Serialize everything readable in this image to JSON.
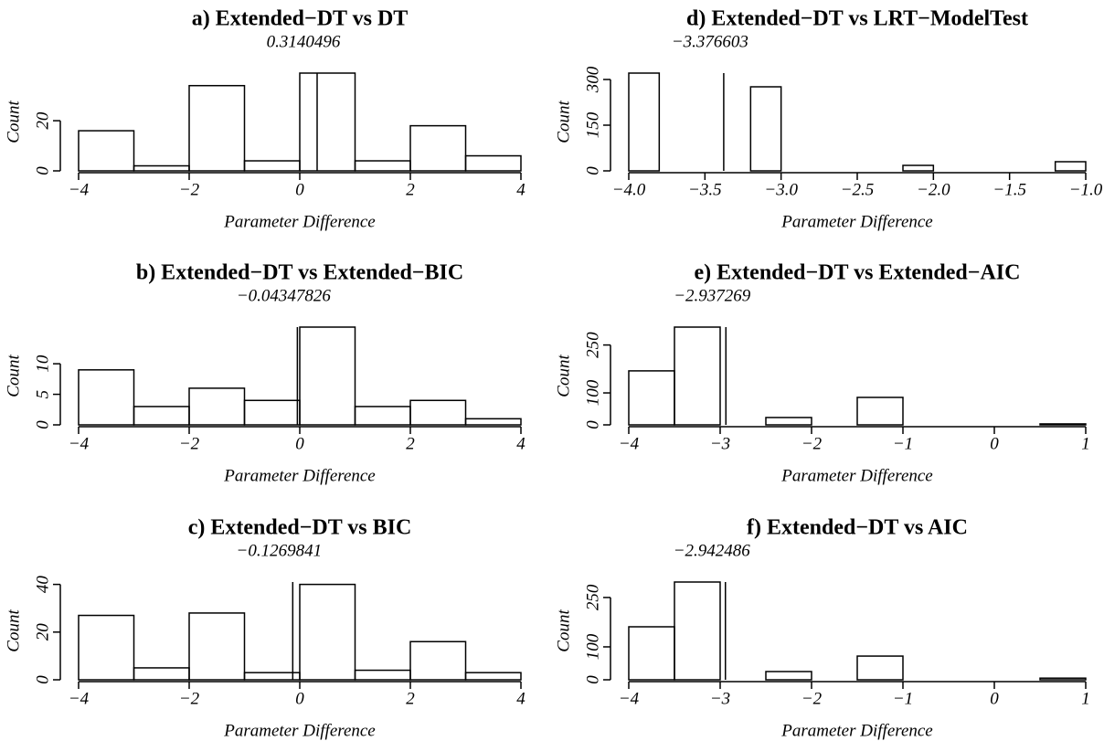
{
  "chart_data": [
    {
      "type": "histogram",
      "title": "a) Extended−DT vs DT",
      "subtitle": 0.3140496,
      "xlabel": "Parameter Difference",
      "ylabel": "Count",
      "bins": [
        {
          "value": -4,
          "label": "−4"
        },
        {
          "value": -3,
          "label": "−3"
        },
        {
          "value": -2,
          "label": "−2"
        },
        {
          "value": -1,
          "label": "−1"
        },
        0,
        1,
        2,
        3,
        4
      ],
      "values": [
        16,
        2,
        34,
        4,
        39,
        4,
        18,
        6
      ],
      "xlim": [
        {
          "value": -4,
          "label": "−4"
        },
        4
      ],
      "xticks": [
        {
          "value": -4,
          "label": "−4"
        },
        {
          "value": -2,
          "label": "−2"
        },
        0,
        2,
        4
      ],
      "ylim": [
        0,
        39
      ],
      "yticks": [
        0,
        20
      ]
    },
    {
      "type": "histogram",
      "title": "b) Extended−DT vs Extended−BIC",
      "subtitle": {
        "value": -0.04347826,
        "label": "−0.04347826"
      },
      "xlabel": "Parameter Difference",
      "ylabel": "Count",
      "bins": [
        {
          "value": -4,
          "label": "−4"
        },
        {
          "value": -3,
          "label": "−3"
        },
        {
          "value": -2,
          "label": "−2"
        },
        {
          "value": -1,
          "label": "−1"
        },
        0,
        1,
        2,
        3,
        4
      ],
      "values": [
        9,
        3,
        6,
        4,
        16,
        3,
        4,
        1
      ],
      "xlim": [
        {
          "value": -4,
          "label": "−4"
        },
        4
      ],
      "xticks": [
        {
          "value": -4,
          "label": "−4"
        },
        {
          "value": -2,
          "label": "−2"
        },
        0,
        2,
        4
      ],
      "ylim": [
        0,
        16
      ],
      "yticks": [
        0,
        5,
        10
      ]
    },
    {
      "type": "histogram",
      "title": "c) Extended−DT vs BIC",
      "subtitle": {
        "value": -0.1269841,
        "label": "−0.1269841"
      },
      "xlabel": "Parameter Difference",
      "ylabel": "Count",
      "bins": [
        {
          "value": -4,
          "label": "−4"
        },
        {
          "value": -3,
          "label": "−3"
        },
        {
          "value": -2,
          "label": "−2"
        },
        {
          "value": -1,
          "label": "−1"
        },
        0,
        1,
        2,
        3,
        4
      ],
      "values": [
        27,
        5,
        28,
        3,
        40,
        4,
        16,
        3
      ],
      "xlim": [
        {
          "value": -4,
          "label": "−4"
        },
        4
      ],
      "xticks": [
        {
          "value": -4,
          "label": "−4"
        },
        {
          "value": -2,
          "label": "−2"
        },
        0,
        2,
        4
      ],
      "ylim": [
        0,
        41
      ],
      "yticks": [
        0,
        20,
        40
      ]
    },
    {
      "type": "histogram",
      "title": "d) Extended−DT vs LRT−ModelTest",
      "subtitle": {
        "value": -3.376603,
        "label": "−3.376603"
      },
      "xlabel": "Parameter Difference",
      "ylabel": "Count",
      "bins": [
        -4.0,
        -3.8,
        -3.6,
        -3.4,
        -3.2,
        -3.0,
        -2.8,
        -2.6,
        -2.4,
        -2.2,
        -2.0,
        -1.8,
        -1.6,
        -1.4,
        -1.2,
        -1.0
      ],
      "values": [
        321,
        0,
        0,
        0,
        276,
        0,
        0,
        0,
        0,
        18,
        0,
        0,
        0,
        0,
        30
      ],
      "xlim": [
        {
          "value": -4,
          "label": "−4.0"
        },
        {
          "value": -1,
          "label": "−1.0"
        }
      ],
      "xticks": [
        {
          "value": -4,
          "label": "−4.0"
        },
        {
          "value": -3.5,
          "label": "−3.5"
        },
        {
          "value": -3,
          "label": "−3.0"
        },
        {
          "value": -2.5,
          "label": "−2.5"
        },
        {
          "value": -2,
          "label": "−2.0"
        },
        {
          "value": -1.5,
          "label": "−1.5"
        },
        {
          "value": -1,
          "label": "−1.0"
        }
      ],
      "ylim": [
        0,
        321
      ],
      "yticks": [
        0,
        150,
        300
      ]
    },
    {
      "type": "histogram",
      "title": "e) Extended−DT vs Extended−AIC",
      "subtitle": {
        "value": -2.937269,
        "label": "−2.937269"
      },
      "xlabel": "Parameter Difference",
      "ylabel": "Count",
      "bins": [
        -4,
        -3.5,
        -3,
        -2.5,
        -2,
        -1.5,
        -1,
        -0.5,
        0,
        0.5,
        1
      ],
      "values": [
        169,
        306,
        0,
        23,
        0,
        86,
        0,
        0,
        0,
        3
      ],
      "xlim": [
        {
          "value": -4,
          "label": "−4"
        },
        1
      ],
      "xticks": [
        {
          "value": -4,
          "label": "−4"
        },
        {
          "value": -3,
          "label": "−3"
        },
        {
          "value": -2,
          "label": "−2"
        },
        {
          "value": -1,
          "label": "−1"
        },
        0,
        1
      ],
      "ylim": [
        0,
        306
      ],
      "yticks": [
        0,
        100,
        250
      ]
    },
    {
      "type": "histogram",
      "title": "f) Extended−DT vs AIC",
      "subtitle": {
        "value": -2.942486,
        "label": "−2.942486"
      },
      "xlabel": "Parameter Difference",
      "ylabel": "Count",
      "bins": [
        -4,
        -3.5,
        -3,
        -2.5,
        -2,
        -1.5,
        -1,
        -0.5,
        0,
        0.5,
        1
      ],
      "values": [
        161,
        297,
        0,
        25,
        0,
        72,
        0,
        0,
        0,
        5
      ],
      "xlim": [
        {
          "value": -4,
          "label": "−4"
        },
        1
      ],
      "xticks": [
        {
          "value": -4,
          "label": "−4"
        },
        {
          "value": -3,
          "label": "−3"
        },
        {
          "value": -2,
          "label": "−2"
        },
        {
          "value": -1,
          "label": "−1"
        },
        0,
        1
      ],
      "ylim": [
        0,
        297
      ],
      "yticks": [
        0,
        100,
        250
      ]
    }
  ]
}
